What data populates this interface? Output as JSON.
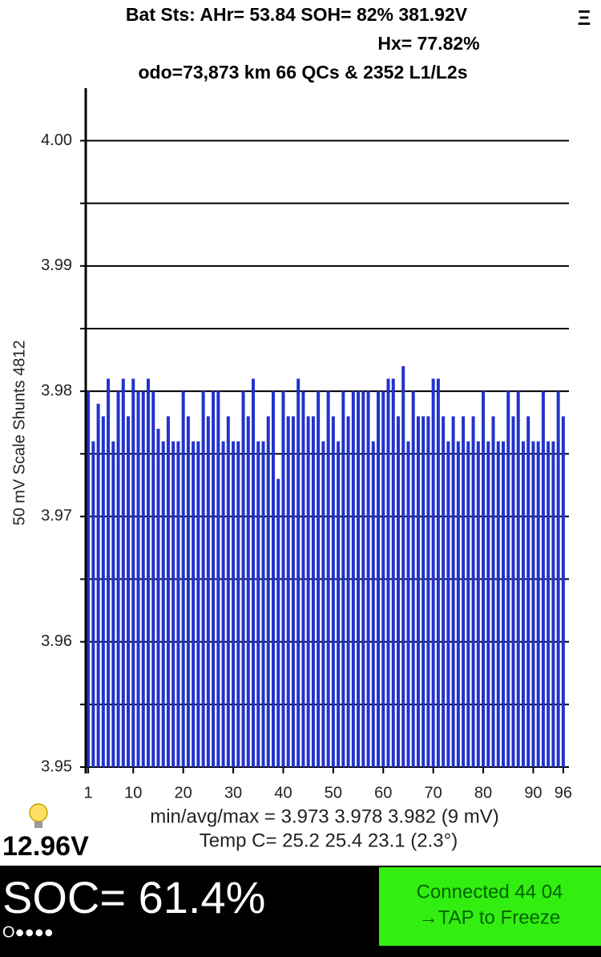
{
  "header": {
    "line1": "Bat Sts: AHr= 53.84 SOH= 82% 381.92V",
    "line2": "Hx= 77.82%",
    "line3": "odo=73,873 km 66 QCs & 2352 L1/L2s",
    "menu": "Ξ"
  },
  "chart_data": {
    "type": "bar",
    "ylabel": "50 mV Scale  Shunts 4812",
    "color": "#2233cc",
    "x": [
      1,
      2,
      3,
      4,
      5,
      6,
      7,
      8,
      9,
      10,
      11,
      12,
      13,
      14,
      15,
      16,
      17,
      18,
      19,
      20,
      21,
      22,
      23,
      24,
      25,
      26,
      27,
      28,
      29,
      30,
      31,
      32,
      33,
      34,
      35,
      36,
      37,
      38,
      39,
      40,
      41,
      42,
      43,
      44,
      45,
      46,
      47,
      48,
      49,
      50,
      51,
      52,
      53,
      54,
      55,
      56,
      57,
      58,
      59,
      60,
      61,
      62,
      63,
      64,
      65,
      66,
      67,
      68,
      69,
      70,
      71,
      72,
      73,
      74,
      75,
      76,
      77,
      78,
      79,
      80,
      81,
      82,
      83,
      84,
      85,
      86,
      87,
      88,
      89,
      90,
      91,
      92,
      93,
      94,
      95,
      96
    ],
    "values": [
      3.98,
      3.976,
      3.979,
      3.978,
      3.981,
      3.976,
      3.98,
      3.981,
      3.978,
      3.981,
      3.98,
      3.98,
      3.981,
      3.98,
      3.977,
      3.976,
      3.978,
      3.976,
      3.976,
      3.98,
      3.978,
      3.976,
      3.976,
      3.98,
      3.978,
      3.98,
      3.98,
      3.976,
      3.978,
      3.976,
      3.976,
      3.98,
      3.978,
      3.981,
      3.976,
      3.976,
      3.978,
      3.98,
      3.973,
      3.98,
      3.978,
      3.978,
      3.981,
      3.98,
      3.978,
      3.978,
      3.98,
      3.976,
      3.98,
      3.978,
      3.976,
      3.98,
      3.978,
      3.98,
      3.98,
      3.98,
      3.98,
      3.976,
      3.98,
      3.98,
      3.981,
      3.981,
      3.978,
      3.982,
      3.976,
      3.98,
      3.978,
      3.978,
      3.978,
      3.981,
      3.981,
      3.978,
      3.976,
      3.978,
      3.976,
      3.978,
      3.976,
      3.978,
      3.976,
      3.98,
      3.976,
      3.978,
      3.976,
      3.976,
      3.98,
      3.978,
      3.98,
      3.976,
      3.978,
      3.976,
      3.976,
      3.98,
      3.976,
      3.976,
      3.98,
      3.978
    ],
    "xlim": [
      0.5,
      96.5
    ],
    "xticks": [
      1,
      10,
      20,
      30,
      40,
      50,
      60,
      70,
      80,
      90,
      96
    ],
    "ylim": [
      3.95,
      4.004
    ],
    "yticks": [
      3.95,
      3.96,
      3.97,
      3.98,
      3.99,
      {
        "value": 4.0,
        "label": "4.00"
      }
    ],
    "minor_yticks": [
      3.955,
      3.965,
      3.975,
      3.985,
      3.995
    ],
    "grid": true
  },
  "stats": {
    "minavgmax": "min/avg/max = 3.973 3.978 3.982  (9 mV)",
    "temp": "Temp C= 25.2  25.4  23.1  (2.3°)",
    "voltage": "12.96V"
  },
  "status": {
    "soc": "SOC= 61.4%",
    "dots": "O●●●●",
    "connected": "Connected 44 04",
    "tap": "→TAP to Freeze"
  }
}
